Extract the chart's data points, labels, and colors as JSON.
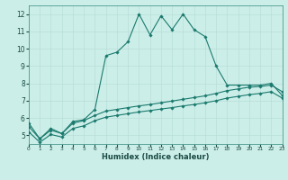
{
  "xlabel": "Humidex (Indice chaleur)",
  "background_color": "#cceee8",
  "grid_color": "#aadddd",
  "line_color": "#1a7a6e",
  "xlim": [
    0,
    23
  ],
  "ylim": [
    4.5,
    12.5
  ],
  "xticks": [
    0,
    1,
    2,
    3,
    4,
    5,
    6,
    7,
    8,
    9,
    10,
    11,
    12,
    13,
    14,
    15,
    16,
    17,
    18,
    19,
    20,
    21,
    22,
    23
  ],
  "yticks": [
    5,
    6,
    7,
    8,
    9,
    10,
    11,
    12
  ],
  "series1_x": [
    0,
    1,
    2,
    3,
    4,
    5,
    6,
    7,
    8,
    9,
    10,
    11,
    12,
    13,
    14,
    15,
    16,
    17,
    18,
    19,
    20,
    21,
    22,
    23
  ],
  "series1_y": [
    5.7,
    4.8,
    5.4,
    5.1,
    5.8,
    5.9,
    6.5,
    9.6,
    9.8,
    10.4,
    12.0,
    10.8,
    11.9,
    11.1,
    12.0,
    11.1,
    10.7,
    9.0,
    7.9,
    7.9,
    7.9,
    7.9,
    8.0,
    7.3
  ],
  "series2_x": [
    0,
    1,
    2,
    3,
    4,
    5,
    6,
    7,
    8,
    9,
    10,
    11,
    12,
    13,
    14,
    15,
    16,
    17,
    18,
    19,
    20,
    21,
    22,
    23
  ],
  "series2_y": [
    5.5,
    4.8,
    5.3,
    5.1,
    5.7,
    5.85,
    6.15,
    6.4,
    6.5,
    6.6,
    6.7,
    6.78,
    6.88,
    6.98,
    7.08,
    7.18,
    7.28,
    7.42,
    7.58,
    7.68,
    7.78,
    7.82,
    7.9,
    7.52
  ],
  "series3_x": [
    0,
    1,
    2,
    3,
    4,
    5,
    6,
    7,
    8,
    9,
    10,
    11,
    12,
    13,
    14,
    15,
    16,
    17,
    18,
    19,
    20,
    21,
    22,
    23
  ],
  "series3_y": [
    5.2,
    4.6,
    5.05,
    4.9,
    5.4,
    5.55,
    5.85,
    6.05,
    6.15,
    6.25,
    6.35,
    6.43,
    6.52,
    6.6,
    6.7,
    6.78,
    6.88,
    7.0,
    7.15,
    7.25,
    7.35,
    7.42,
    7.52,
    7.15
  ]
}
